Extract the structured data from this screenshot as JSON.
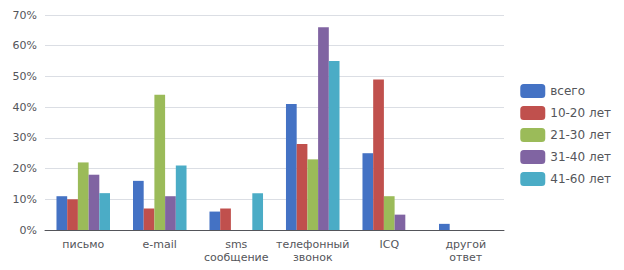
{
  "chart_data": {
    "type": "bar",
    "categories": [
      "письмо",
      "e-mail",
      "sms\nсообщение",
      "телефонный\nзвонок",
      "ICQ",
      "другой\nответ"
    ],
    "series": [
      {
        "name": "всего",
        "color": "#4472C4",
        "values": [
          11,
          16,
          6,
          41,
          25,
          2
        ]
      },
      {
        "name": "10-20 лет",
        "color": "#C0504D",
        "values": [
          10,
          7,
          7,
          28,
          49,
          0
        ]
      },
      {
        "name": "21-30 лет",
        "color": "#9BBB59",
        "values": [
          22,
          44,
          0,
          23,
          11,
          0
        ]
      },
      {
        "name": "31-40 лет",
        "color": "#8064A2",
        "values": [
          18,
          11,
          0,
          66,
          5,
          0
        ]
      },
      {
        "name": "41-60 лет",
        "color": "#4BACC6",
        "values": [
          12,
          21,
          12,
          55,
          0,
          0
        ]
      }
    ],
    "ylim": [
      0,
      70
    ],
    "yticks": [
      {
        "value": 0,
        "label": "0%"
      },
      {
        "value": 10,
        "label": "10%"
      },
      {
        "value": 20,
        "label": "20%"
      },
      {
        "value": 30,
        "label": "30%"
      },
      {
        "value": 40,
        "label": "40%"
      },
      {
        "value": 50,
        "label": "50%"
      },
      {
        "value": 60,
        "label": "60%"
      },
      {
        "value": 70,
        "label": "70%"
      }
    ],
    "grid": true,
    "legend": "right"
  }
}
